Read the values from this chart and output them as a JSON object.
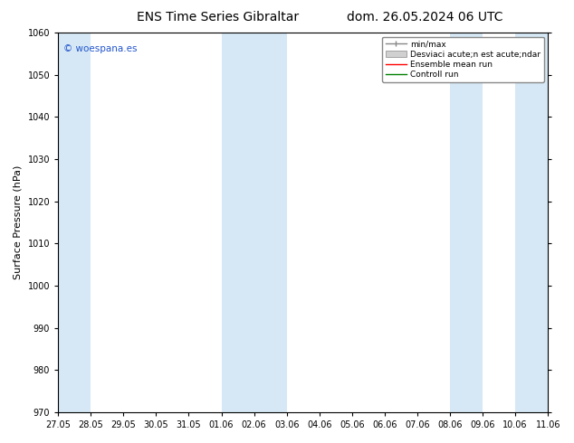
{
  "title_left": "ENS Time Series Gibraltar",
  "title_right": "dom. 26.05.2024 06 UTC",
  "ylabel": "Surface Pressure (hPa)",
  "ylim": [
    970,
    1060
  ],
  "yticks": [
    970,
    980,
    990,
    1000,
    1010,
    1020,
    1030,
    1040,
    1050,
    1060
  ],
  "xtick_labels": [
    "27.05",
    "28.05",
    "29.05",
    "30.05",
    "31.05",
    "01.06",
    "02.06",
    "03.06",
    "04.06",
    "05.06",
    "06.06",
    "07.06",
    "08.06",
    "09.06",
    "10.06",
    "11.06"
  ],
  "background_color": "#ffffff",
  "plot_bg_color": "#ffffff",
  "band_color": "#d6e8f5",
  "watermark": "© woespana.es",
  "legend_entries": [
    "min/max",
    "Desviaci acute;n est acute;ndar",
    "Ensemble mean run",
    "Controll run"
  ],
  "legend_colors": [
    "#aaaaaa",
    "#cccccc",
    "#ff0000",
    "#008000"
  ],
  "title_fontsize": 10,
  "tick_fontsize": 7,
  "ylabel_fontsize": 8,
  "band_indices": [
    0,
    5,
    6,
    7,
    12,
    13,
    14,
    15
  ],
  "band_ranges": [
    [
      0,
      1
    ],
    [
      5,
      7
    ],
    [
      12,
      15
    ]
  ]
}
